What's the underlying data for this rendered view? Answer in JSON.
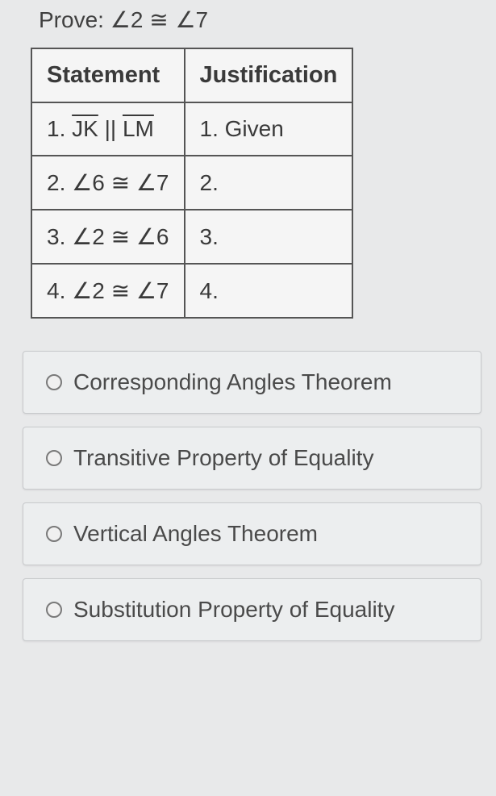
{
  "prove": {
    "label": "Prove:",
    "expr_left": "∠2",
    "expr_sym": "≅",
    "expr_right": "∠7"
  },
  "table": {
    "headers": {
      "c1": "Statement",
      "c2": "Justification"
    },
    "rows": [
      {
        "num": "1.",
        "stmt_prefix": "",
        "seg1": "JK",
        "mid": " || ",
        "seg2": "LM",
        "just": "1. Given"
      },
      {
        "num": "2.",
        "stmt": "∠6 ≅ ∠7",
        "just": "2."
      },
      {
        "num": "3.",
        "stmt": "∠2 ≅ ∠6",
        "just": "3."
      },
      {
        "num": "4.",
        "stmt": "∠2 ≅ ∠7",
        "just": "4."
      }
    ]
  },
  "options": [
    {
      "label": "Corresponding Angles Theorem"
    },
    {
      "label": "Transitive Property of Equality"
    },
    {
      "label": "Vertical Angles Theorem"
    },
    {
      "label": "Substitution Property of Equality"
    }
  ],
  "style": {
    "bg": "#e8e9ea",
    "table_border": "#555555",
    "option_bg": "#eceeef",
    "option_border": "#c8cacc",
    "text": "#3a3a3a"
  }
}
